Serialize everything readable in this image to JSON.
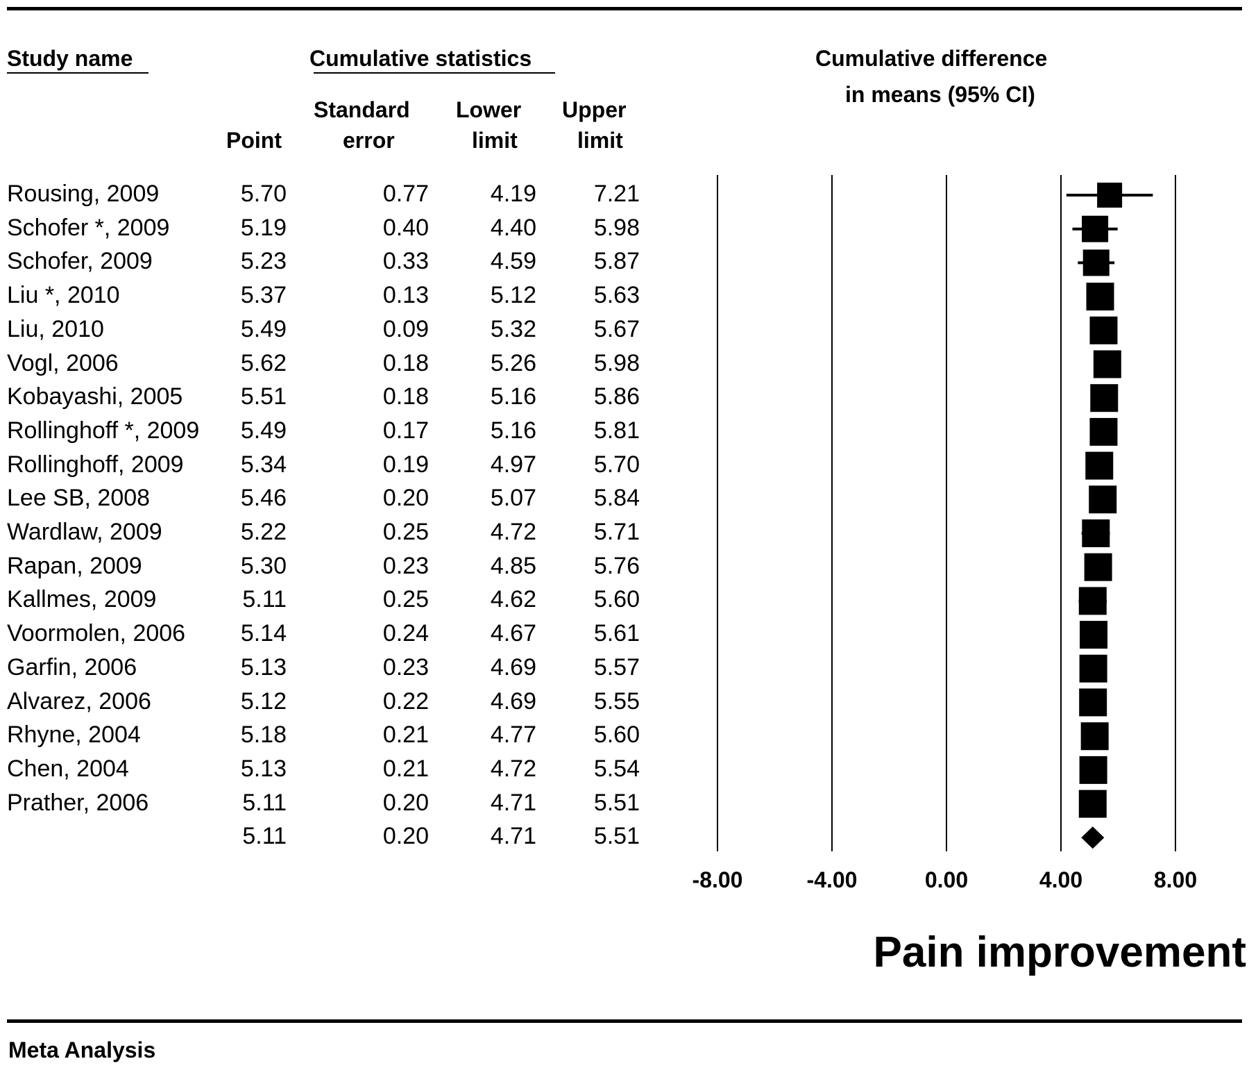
{
  "headers": {
    "study_name": "Study name",
    "cumulative_statistics": "Cumulative statistics",
    "point": "Point",
    "se_line1": "Standard",
    "se_line2": "error",
    "lower_line1": "Lower",
    "lower_line2": "limit",
    "upper_line1": "Upper",
    "upper_line2": "limit",
    "plot_title_line1": "Cumulative difference",
    "plot_title_line2": "in means (95% CI)"
  },
  "footer": {
    "label": "Meta Analysis"
  },
  "chart_data": {
    "type": "forest",
    "title": "Cumulative difference in means (95% CI)",
    "xlabel": "Pain improvement",
    "xlim": [
      -8,
      8
    ],
    "xticks": [
      "-8.00",
      "-4.00",
      "0.00",
      "4.00",
      "8.00"
    ],
    "xtick_values": [
      -8,
      -4,
      0,
      4,
      8
    ],
    "grid_lines": true,
    "marker_color": "#000000",
    "rows": [
      {
        "study": "Rousing, 2009",
        "point": "5.70",
        "se": "0.77",
        "lower": "4.19",
        "upper": "7.21"
      },
      {
        "study": "Schofer *, 2009",
        "point": "5.19",
        "se": "0.40",
        "lower": "4.40",
        "upper": "5.98"
      },
      {
        "study": "Schofer, 2009",
        "point": "5.23",
        "se": "0.33",
        "lower": "4.59",
        "upper": "5.87"
      },
      {
        "study": "Liu *, 2010",
        "point": "5.37",
        "se": "0.13",
        "lower": "5.12",
        "upper": "5.63"
      },
      {
        "study": "Liu, 2010",
        "point": "5.49",
        "se": "0.09",
        "lower": "5.32",
        "upper": "5.67"
      },
      {
        "study": "Vogl, 2006",
        "point": "5.62",
        "se": "0.18",
        "lower": "5.26",
        "upper": "5.98"
      },
      {
        "study": "Kobayashi, 2005",
        "point": "5.51",
        "se": "0.18",
        "lower": "5.16",
        "upper": "5.86"
      },
      {
        "study": "Rollinghoff *, 2009",
        "point": "5.49",
        "se": "0.17",
        "lower": "5.16",
        "upper": "5.81"
      },
      {
        "study": "Rollinghoff, 2009",
        "point": "5.34",
        "se": "0.19",
        "lower": "4.97",
        "upper": "5.70"
      },
      {
        "study": "Lee SB, 2008",
        "point": "5.46",
        "se": "0.20",
        "lower": "5.07",
        "upper": "5.84"
      },
      {
        "study": "Wardlaw, 2009",
        "point": "5.22",
        "se": "0.25",
        "lower": "4.72",
        "upper": "5.71"
      },
      {
        "study": "Rapan, 2009",
        "point": "5.30",
        "se": "0.23",
        "lower": "4.85",
        "upper": "5.76"
      },
      {
        "study": "Kallmes, 2009",
        "point": "5.11",
        "se": "0.25",
        "lower": "4.62",
        "upper": "5.60"
      },
      {
        "study": "Voormolen, 2006",
        "point": "5.14",
        "se": "0.24",
        "lower": "4.67",
        "upper": "5.61"
      },
      {
        "study": "Garfin, 2006",
        "point": "5.13",
        "se": "0.23",
        "lower": "4.69",
        "upper": "5.57"
      },
      {
        "study": "Alvarez, 2006",
        "point": "5.12",
        "se": "0.22",
        "lower": "4.69",
        "upper": "5.55"
      },
      {
        "study": "Rhyne, 2004",
        "point": "5.18",
        "se": "0.21",
        "lower": "4.77",
        "upper": "5.60"
      },
      {
        "study": "Chen, 2004",
        "point": "5.13",
        "se": "0.21",
        "lower": "4.72",
        "upper": "5.54"
      },
      {
        "study": "Prather, 2006",
        "point": "5.11",
        "se": "0.20",
        "lower": "4.71",
        "upper": "5.51"
      }
    ],
    "summary": {
      "study": "",
      "point": "5.11",
      "se": "0.20",
      "lower": "4.71",
      "upper": "5.51",
      "marker": "diamond"
    }
  }
}
